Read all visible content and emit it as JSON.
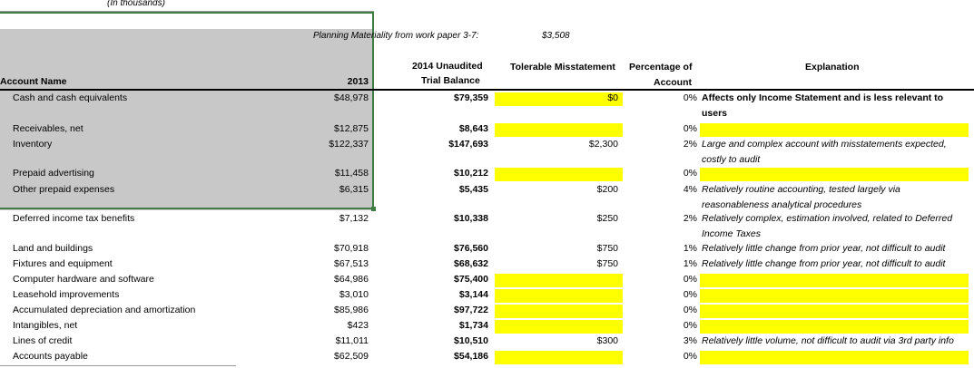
{
  "caption": "(In thousands)",
  "planning": {
    "label": "Planning Materiality from work paper 3-7:",
    "value": "$3,508"
  },
  "headers": {
    "account": "Account Name",
    "year2013": "2013",
    "unaudited_line1": "2014 Unaudited",
    "unaudited_line2": "Trial Balance",
    "tolerable": "Tolerable Misstatement",
    "pct_line1": "Percentage of",
    "pct_line2": "Account",
    "explanation": "Explanation"
  },
  "rows": [
    {
      "account": "Cash and cash equivalents",
      "y2013": "$48,978",
      "y2014": "$79,359",
      "tolerable": "$0",
      "pct": "0%",
      "explanation_line1": "Affects only Income Statement and is less relevant to",
      "explanation_line2": "users"
    },
    {
      "account": "Receivables, net",
      "y2013": "$12,875",
      "y2014": "$8,643",
      "tolerable": "",
      "pct": "0%",
      "explanation_line1": "",
      "explanation_line2": ""
    },
    {
      "account": "Inventory",
      "y2013": "$122,337",
      "y2014": "$147,693",
      "tolerable": "$2,300",
      "pct": "2%",
      "explanation_line1": "Large and complex account with misstatements expected,",
      "explanation_line2": "costly to audit"
    },
    {
      "account": "Prepaid advertising",
      "y2013": "$11,458",
      "y2014": "$10,212",
      "tolerable": "",
      "pct": "0%",
      "explanation_line1": "",
      "explanation_line2": ""
    },
    {
      "account": "Other prepaid expenses",
      "y2013": "$6,315",
      "y2014": "$5,435",
      "tolerable": "$200",
      "pct": "4%",
      "explanation_line1": "Relatively routine accounting, tested largely via",
      "explanation_line2": "reasonableness analytical procedures"
    },
    {
      "account": "Deferred income tax benefits",
      "y2013": "$7,132",
      "y2014": "$10,338",
      "tolerable": "$250",
      "pct": "2%",
      "explanation_line1": "Relatively complex, estimation involved, related to Deferred",
      "explanation_line2": "Income Taxes"
    },
    {
      "account": "Land and buildings",
      "y2013": "$70,918",
      "y2014": "$76,560",
      "tolerable": "$750",
      "pct": "1%",
      "explanation_line1": "Relatively little change from prior year, not difficult to audit",
      "explanation_line2": ""
    },
    {
      "account": "Fixtures and equipment",
      "y2013": "$67,513",
      "y2014": "$68,632",
      "tolerable": "$750",
      "pct": "1%",
      "explanation_line1": "Relatively little change from prior year, not difficult to audit",
      "explanation_line2": ""
    },
    {
      "account": "Computer hardware and software",
      "y2013": "$64,986",
      "y2014": "$75,400",
      "tolerable": "",
      "pct": "0%",
      "explanation_line1": "",
      "explanation_line2": ""
    },
    {
      "account": "Leasehold improvements",
      "y2013": "$3,010",
      "y2014": "$3,144",
      "tolerable": "",
      "pct": "0%",
      "explanation_line1": "",
      "explanation_line2": ""
    },
    {
      "account": "Accumulated depreciation and amortization",
      "y2013": "$85,986",
      "y2014": "$97,722",
      "tolerable": "",
      "pct": "0%",
      "explanation_line1": "",
      "explanation_line2": ""
    },
    {
      "account": "Intangibles, net",
      "y2013": "$423",
      "y2014": "$1,734",
      "tolerable": "",
      "pct": "0%",
      "explanation_line1": "",
      "explanation_line2": ""
    },
    {
      "account": "Lines of credit",
      "y2013": "$11,011",
      "y2014": "$10,510",
      "tolerable": "$300",
      "pct": "3%",
      "explanation_line1": "Relatively little volume, not difficult to audit via 3rd party info",
      "explanation_line2": ""
    },
    {
      "account": "Accounts payable",
      "y2013": "$62,509",
      "y2014": "$54,186",
      "tolerable": "",
      "pct": "0%",
      "explanation_line1": "",
      "explanation_line2": ""
    }
  ]
}
